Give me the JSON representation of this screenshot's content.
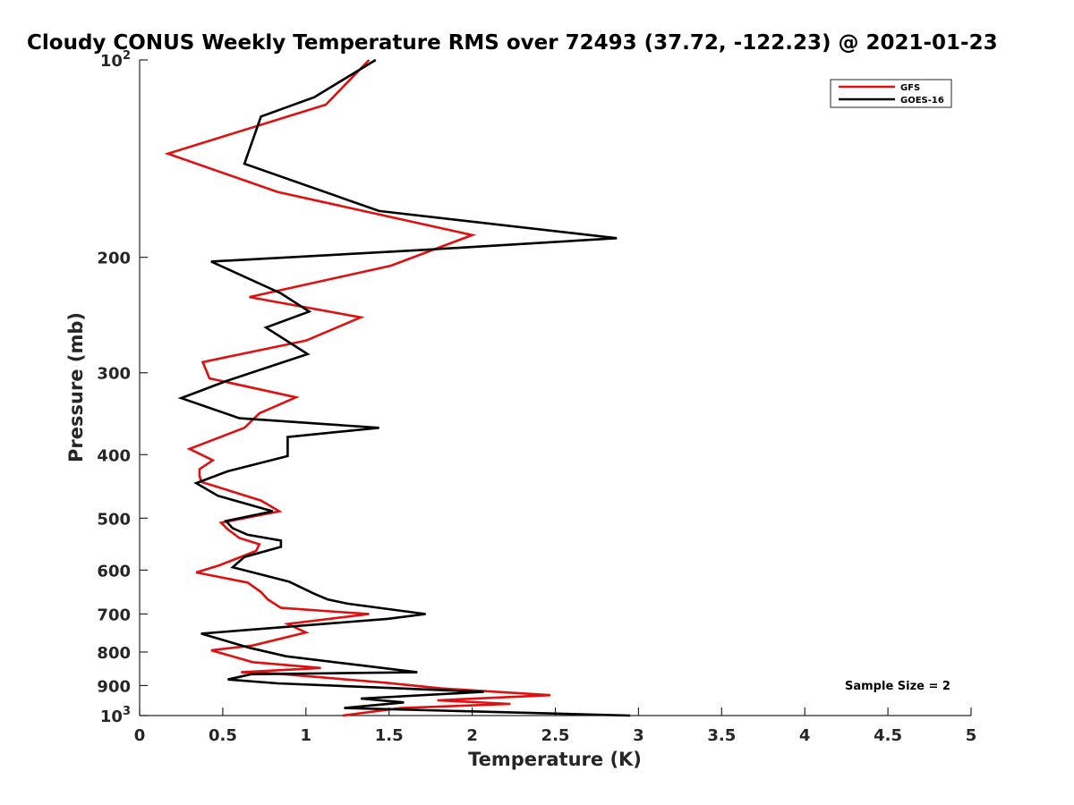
{
  "chart_data": {
    "type": "line",
    "title": "Cloudy CONUS Weekly Temperature RMS over 72493 (37.72, -122.23) @ 2021-01-23",
    "xlabel": "Temperature (K)",
    "ylabel": "Pressure (mb)",
    "xlim": [
      0,
      5
    ],
    "ylim": [
      100,
      1000
    ],
    "y_scale": "log",
    "y_reversed": true,
    "grid": false,
    "legend_position": "top-right",
    "x_ticks": [
      {
        "value": 0,
        "label": "0"
      },
      {
        "value": 0.5,
        "label": "0.5"
      },
      {
        "value": 1,
        "label": "1"
      },
      {
        "value": 1.5,
        "label": "1.5"
      },
      {
        "value": 2,
        "label": "2"
      },
      {
        "value": 2.5,
        "label": "2.5"
      },
      {
        "value": 3,
        "label": "3"
      },
      {
        "value": 3.5,
        "label": "3.5"
      },
      {
        "value": 4,
        "label": "4"
      },
      {
        "value": 4.5,
        "label": "4.5"
      },
      {
        "value": 5,
        "label": "5"
      }
    ],
    "y_ticks": [
      {
        "value": 100,
        "base": "10",
        "exp": "2"
      },
      {
        "value": 200,
        "label": "200"
      },
      {
        "value": 300,
        "label": "300"
      },
      {
        "value": 400,
        "label": "400"
      },
      {
        "value": 500,
        "label": "500"
      },
      {
        "value": 600,
        "label": "600"
      },
      {
        "value": 700,
        "label": "700"
      },
      {
        "value": 800,
        "label": "800"
      },
      {
        "value": 900,
        "label": "900"
      },
      {
        "value": 1000,
        "base": "10",
        "exp": "3"
      }
    ],
    "annotation": "Sample Size = 2",
    "series": [
      {
        "name": "GFS",
        "color": "#e01010",
        "points": [
          [
            1.38,
            100
          ],
          [
            1.12,
            117
          ],
          [
            0.17,
            139
          ],
          [
            0.83,
            159
          ],
          [
            2.0,
            185
          ],
          [
            1.51,
            206
          ],
          [
            0.66,
            230
          ],
          [
            1.33,
            247
          ],
          [
            1.0,
            268
          ],
          [
            0.38,
            289
          ],
          [
            0.42,
            306
          ],
          [
            0.94,
            327
          ],
          [
            0.72,
            346
          ],
          [
            0.63,
            364
          ],
          [
            0.3,
            392
          ],
          [
            0.44,
            408
          ],
          [
            0.36,
            421
          ],
          [
            0.36,
            430
          ],
          [
            0.37,
            440
          ],
          [
            0.73,
            470
          ],
          [
            0.84,
            488
          ],
          [
            0.49,
            508
          ],
          [
            0.53,
            520
          ],
          [
            0.6,
            536
          ],
          [
            0.72,
            548
          ],
          [
            0.7,
            561
          ],
          [
            0.48,
            590
          ],
          [
            0.34,
            605
          ],
          [
            0.65,
            627
          ],
          [
            0.73,
            648
          ],
          [
            0.77,
            665
          ],
          [
            0.85,
            685
          ],
          [
            1.38,
            700
          ],
          [
            0.89,
            725
          ],
          [
            1.0,
            747
          ],
          [
            0.68,
            782
          ],
          [
            0.43,
            795
          ],
          [
            0.68,
            829
          ],
          [
            1.09,
            846
          ],
          [
            0.61,
            859
          ],
          [
            0.82,
            863
          ],
          [
            1.48,
            891
          ],
          [
            1.81,
            909
          ],
          [
            2.47,
            931
          ],
          [
            1.79,
            948
          ],
          [
            2.23,
            960
          ],
          [
            1.57,
            974
          ],
          [
            1.22,
            1000
          ]
        ]
      },
      {
        "name": "GOES-16",
        "color": "#000000",
        "points": [
          [
            1.42,
            100
          ],
          [
            1.05,
            114
          ],
          [
            0.73,
            122
          ],
          [
            0.63,
            144
          ],
          [
            1.44,
            170
          ],
          [
            2.87,
            187
          ],
          [
            1.69,
            195
          ],
          [
            0.43,
            203
          ],
          [
            0.85,
            227
          ],
          [
            1.02,
            242
          ],
          [
            0.76,
            256
          ],
          [
            1.01,
            281
          ],
          [
            0.52,
            309
          ],
          [
            0.25,
            328
          ],
          [
            0.6,
            352
          ],
          [
            1.44,
            364
          ],
          [
            0.89,
            376
          ],
          [
            0.89,
            402
          ],
          [
            0.53,
            424
          ],
          [
            0.34,
            442
          ],
          [
            0.47,
            462
          ],
          [
            0.8,
            488
          ],
          [
            0.52,
            505
          ],
          [
            0.56,
            518
          ],
          [
            0.65,
            530
          ],
          [
            0.85,
            541
          ],
          [
            0.85,
            553
          ],
          [
            0.63,
            573
          ],
          [
            0.56,
            594
          ],
          [
            0.9,
            625
          ],
          [
            1.05,
            652
          ],
          [
            1.13,
            665
          ],
          [
            1.25,
            675
          ],
          [
            1.72,
            700
          ],
          [
            1.49,
            712
          ],
          [
            0.37,
            750
          ],
          [
            0.66,
            788
          ],
          [
            0.88,
            812
          ],
          [
            1.34,
            839
          ],
          [
            1.67,
            859
          ],
          [
            0.67,
            865
          ],
          [
            0.53,
            881
          ],
          [
            0.83,
            893
          ],
          [
            1.43,
            906
          ],
          [
            2.07,
            920
          ],
          [
            1.33,
            942
          ],
          [
            1.59,
            955
          ],
          [
            1.23,
            974
          ],
          [
            2.95,
            1000
          ]
        ]
      }
    ]
  }
}
